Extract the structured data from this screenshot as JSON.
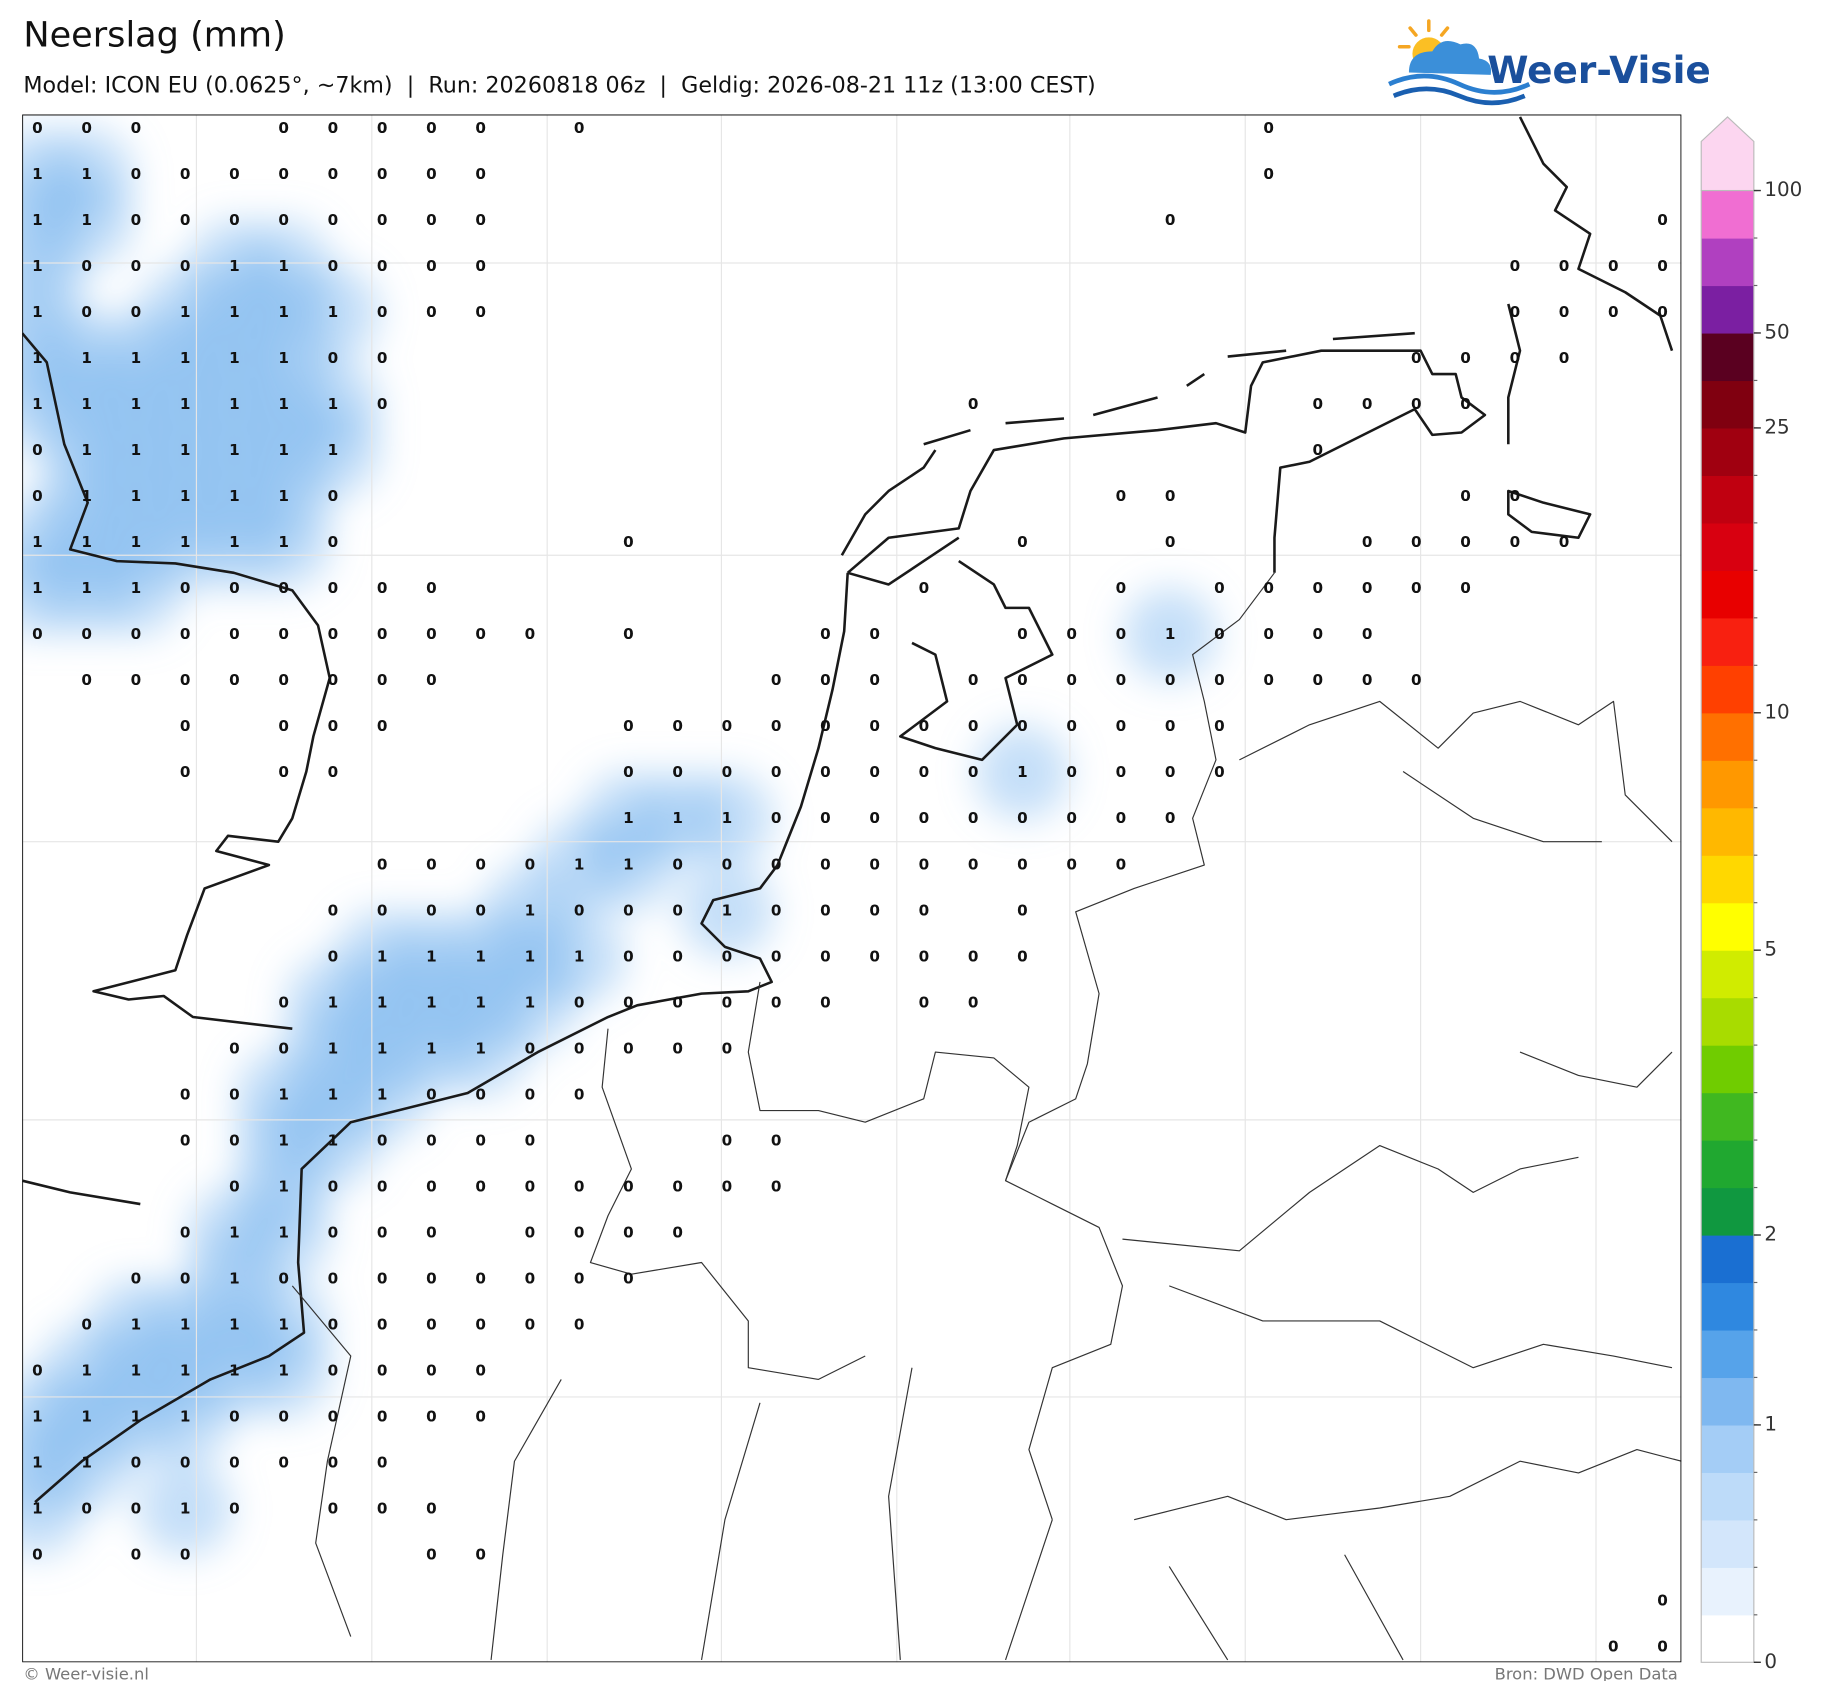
{
  "header": {
    "title": "Neerslag (mm)",
    "subtitle": "Model: ICON EU (0.0625°, ~7km)  |  Run: 20260818 06z  |  Geldig: 2026-08-21 11z (13:00 CEST)",
    "logo": "Weer-Visie"
  },
  "map": {
    "grid": [
      [
        0,
        0,
        0,
        null,
        null,
        0,
        0,
        0,
        0,
        0,
        null,
        0,
        null,
        null,
        null,
        null,
        null,
        null,
        null,
        null,
        null,
        null,
        null,
        null,
        null,
        0,
        null,
        null,
        null,
        null,
        null,
        null,
        null,
        null
      ],
      [
        1,
        1,
        0,
        0,
        0,
        0,
        0,
        0,
        0,
        0,
        null,
        null,
        null,
        null,
        null,
        null,
        null,
        null,
        null,
        null,
        null,
        null,
        null,
        null,
        null,
        0,
        null,
        null,
        null,
        null,
        null,
        null,
        null,
        null
      ],
      [
        1,
        1,
        0,
        0,
        0,
        0,
        0,
        0,
        0,
        0,
        null,
        null,
        null,
        null,
        null,
        null,
        null,
        null,
        null,
        null,
        null,
        null,
        null,
        0,
        null,
        null,
        null,
        null,
        null,
        null,
        null,
        null,
        null,
        0
      ],
      [
        1,
        0,
        0,
        0,
        1,
        1,
        0,
        0,
        0,
        0,
        null,
        null,
        null,
        null,
        null,
        null,
        null,
        null,
        null,
        null,
        null,
        null,
        null,
        null,
        null,
        null,
        null,
        null,
        null,
        null,
        0,
        0,
        0,
        0
      ],
      [
        1,
        0,
        0,
        1,
        1,
        1,
        1,
        0,
        0,
        0,
        null,
        null,
        null,
        null,
        null,
        null,
        null,
        null,
        null,
        null,
        null,
        null,
        null,
        null,
        null,
        null,
        null,
        null,
        null,
        null,
        0,
        0,
        0,
        0
      ],
      [
        1,
        1,
        1,
        1,
        1,
        1,
        0,
        0,
        null,
        null,
        null,
        null,
        null,
        null,
        null,
        null,
        null,
        null,
        null,
        null,
        null,
        null,
        null,
        null,
        null,
        null,
        null,
        null,
        0,
        0,
        0,
        0,
        null,
        null
      ],
      [
        1,
        1,
        1,
        1,
        1,
        1,
        1,
        0,
        null,
        null,
        null,
        null,
        null,
        null,
        null,
        null,
        null,
        null,
        null,
        0,
        null,
        null,
        null,
        null,
        null,
        null,
        0,
        0,
        0,
        0,
        null,
        null,
        null,
        null
      ],
      [
        0,
        1,
        1,
        1,
        1,
        1,
        1,
        null,
        null,
        null,
        null,
        null,
        null,
        null,
        null,
        null,
        null,
        null,
        null,
        null,
        null,
        null,
        null,
        null,
        null,
        null,
        0,
        null,
        null,
        null,
        null,
        null,
        null,
        null
      ],
      [
        0,
        1,
        1,
        1,
        1,
        1,
        0,
        null,
        null,
        null,
        null,
        null,
        null,
        null,
        null,
        null,
        null,
        null,
        null,
        null,
        null,
        null,
        0,
        0,
        null,
        null,
        null,
        null,
        null,
        0,
        0,
        null,
        null,
        null
      ],
      [
        1,
        1,
        1,
        1,
        1,
        1,
        0,
        null,
        null,
        null,
        null,
        null,
        0,
        null,
        null,
        null,
        null,
        null,
        null,
        null,
        0,
        null,
        null,
        0,
        null,
        null,
        null,
        0,
        0,
        0,
        0,
        0,
        null,
        null
      ],
      [
        1,
        1,
        1,
        0,
        0,
        0,
        0,
        0,
        0,
        null,
        null,
        null,
        null,
        null,
        null,
        null,
        null,
        null,
        0,
        null,
        null,
        null,
        0,
        null,
        0,
        0,
        0,
        0,
        0,
        0,
        null,
        null,
        null,
        null
      ],
      [
        0,
        0,
        0,
        0,
        0,
        0,
        0,
        0,
        0,
        0,
        0,
        null,
        0,
        null,
        null,
        null,
        0,
        0,
        null,
        null,
        0,
        0,
        0,
        1,
        0,
        0,
        0,
        0,
        null,
        null,
        null,
        null,
        null,
        null
      ],
      [
        null,
        0,
        0,
        0,
        0,
        0,
        0,
        0,
        0,
        null,
        null,
        null,
        null,
        null,
        null,
        0,
        0,
        0,
        null,
        0,
        0,
        0,
        0,
        0,
        0,
        0,
        0,
        0,
        0,
        null,
        null,
        null,
        null,
        null
      ],
      [
        null,
        null,
        null,
        0,
        null,
        0,
        0,
        0,
        null,
        null,
        null,
        null,
        0,
        0,
        0,
        0,
        0,
        0,
        0,
        0,
        0,
        0,
        0,
        0,
        0,
        null,
        null,
        null,
        null,
        null,
        null,
        null,
        null,
        null
      ],
      [
        null,
        null,
        null,
        0,
        null,
        0,
        0,
        null,
        null,
        null,
        null,
        null,
        0,
        0,
        0,
        0,
        0,
        0,
        0,
        0,
        1,
        0,
        0,
        0,
        0,
        null,
        null,
        null,
        null,
        null,
        null,
        null,
        null,
        null
      ],
      [
        null,
        null,
        null,
        null,
        null,
        null,
        null,
        null,
        null,
        null,
        null,
        null,
        1,
        1,
        1,
        0,
        0,
        0,
        0,
        0,
        0,
        0,
        0,
        0,
        null,
        null,
        null,
        null,
        null,
        null,
        null,
        null,
        null,
        null
      ],
      [
        null,
        null,
        null,
        null,
        null,
        null,
        null,
        0,
        0,
        0,
        0,
        1,
        1,
        0,
        0,
        0,
        0,
        0,
        0,
        0,
        0,
        0,
        0,
        null,
        null,
        null,
        null,
        null,
        null,
        null,
        null,
        null,
        null,
        null
      ],
      [
        null,
        null,
        null,
        null,
        null,
        null,
        0,
        0,
        0,
        0,
        1,
        0,
        0,
        0,
        1,
        0,
        0,
        0,
        0,
        null,
        0,
        null,
        null,
        null,
        null,
        null,
        null,
        null,
        null,
        null,
        null,
        null,
        null,
        null
      ],
      [
        null,
        null,
        null,
        null,
        null,
        null,
        0,
        1,
        1,
        1,
        1,
        1,
        0,
        0,
        0,
        0,
        0,
        0,
        0,
        0,
        0,
        null,
        null,
        null,
        null,
        null,
        null,
        null,
        null,
        null,
        null,
        null,
        null,
        null
      ],
      [
        null,
        null,
        null,
        null,
        null,
        0,
        1,
        1,
        1,
        1,
        1,
        0,
        0,
        0,
        0,
        0,
        0,
        null,
        0,
        0,
        null,
        null,
        null,
        null,
        null,
        null,
        null,
        null,
        null,
        null,
        null,
        null,
        null,
        null
      ],
      [
        null,
        null,
        null,
        null,
        0,
        0,
        1,
        1,
        1,
        1,
        0,
        0,
        0,
        0,
        0,
        null,
        null,
        null,
        null,
        null,
        null,
        null,
        null,
        null,
        null,
        null,
        null,
        null,
        null,
        null,
        null,
        null,
        null,
        null
      ],
      [
        null,
        null,
        null,
        0,
        0,
        1,
        1,
        1,
        0,
        0,
        0,
        0,
        null,
        null,
        null,
        null,
        null,
        null,
        null,
        null,
        null,
        null,
        null,
        null,
        null,
        null,
        null,
        null,
        null,
        null,
        null,
        null,
        null,
        null
      ],
      [
        null,
        null,
        null,
        0,
        0,
        1,
        1,
        0,
        0,
        0,
        0,
        null,
        null,
        null,
        0,
        0,
        null,
        null,
        null,
        null,
        null,
        null,
        null,
        null,
        null,
        null,
        null,
        null,
        null,
        null,
        null,
        null,
        null,
        null
      ],
      [
        null,
        null,
        null,
        null,
        0,
        1,
        0,
        0,
        0,
        0,
        0,
        0,
        0,
        0,
        0,
        0,
        null,
        null,
        null,
        null,
        null,
        null,
        null,
        null,
        null,
        null,
        null,
        null,
        null,
        null,
        null,
        null,
        null,
        null
      ],
      [
        null,
        null,
        null,
        0,
        1,
        1,
        0,
        0,
        0,
        null,
        0,
        0,
        0,
        0,
        null,
        null,
        null,
        null,
        null,
        null,
        null,
        null,
        null,
        null,
        null,
        null,
        null,
        null,
        null,
        null,
        null,
        null,
        null,
        null
      ],
      [
        null,
        null,
        0,
        0,
        1,
        0,
        0,
        0,
        0,
        0,
        0,
        0,
        0,
        null,
        null,
        null,
        null,
        null,
        null,
        null,
        null,
        null,
        null,
        null,
        null,
        null,
        null,
        null,
        null,
        null,
        null,
        null,
        null,
        null
      ],
      [
        null,
        0,
        1,
        1,
        1,
        1,
        0,
        0,
        0,
        0,
        0,
        0,
        null,
        null,
        null,
        null,
        null,
        null,
        null,
        null,
        null,
        null,
        null,
        null,
        null,
        null,
        null,
        null,
        null,
        null,
        null,
        null,
        null,
        null
      ],
      [
        0,
        1,
        1,
        1,
        1,
        1,
        0,
        0,
        0,
        0,
        null,
        null,
        null,
        null,
        null,
        null,
        null,
        null,
        null,
        null,
        null,
        null,
        null,
        null,
        null,
        null,
        null,
        null,
        null,
        null,
        null,
        null,
        null,
        null
      ],
      [
        1,
        1,
        1,
        1,
        0,
        0,
        0,
        0,
        0,
        0,
        null,
        null,
        null,
        null,
        null,
        null,
        null,
        null,
        null,
        null,
        null,
        null,
        null,
        null,
        null,
        null,
        null,
        null,
        null,
        null,
        null,
        null,
        null,
        null
      ],
      [
        1,
        1,
        0,
        0,
        0,
        0,
        0,
        0,
        null,
        null,
        null,
        null,
        null,
        null,
        null,
        null,
        null,
        null,
        null,
        null,
        null,
        null,
        null,
        null,
        null,
        null,
        null,
        null,
        null,
        null,
        null,
        null,
        null,
        null
      ],
      [
        1,
        0,
        0,
        1,
        0,
        null,
        0,
        0,
        0,
        null,
        null,
        null,
        null,
        null,
        null,
        null,
        null,
        null,
        null,
        null,
        null,
        null,
        null,
        null,
        null,
        null,
        null,
        null,
        null,
        null,
        null,
        null,
        null,
        null
      ],
      [
        0,
        null,
        0,
        0,
        null,
        null,
        null,
        null,
        0,
        0,
        null,
        null,
        null,
        null,
        null,
        null,
        null,
        null,
        null,
        null,
        null,
        null,
        null,
        null,
        null,
        null,
        null,
        null,
        null,
        null,
        null,
        null,
        null,
        null
      ],
      [
        null,
        null,
        null,
        null,
        null,
        null,
        null,
        null,
        null,
        null,
        null,
        null,
        null,
        null,
        null,
        null,
        null,
        null,
        null,
        null,
        null,
        null,
        null,
        null,
        null,
        null,
        null,
        null,
        null,
        null,
        null,
        null,
        null,
        0
      ],
      [
        null,
        null,
        null,
        null,
        null,
        null,
        null,
        null,
        null,
        null,
        null,
        null,
        null,
        null,
        null,
        null,
        null,
        null,
        null,
        null,
        null,
        null,
        null,
        null,
        null,
        null,
        null,
        null,
        null,
        null,
        null,
        null,
        0,
        0
      ]
    ]
  },
  "colorbar": {
    "levels": [
      0,
      0.1,
      0.2,
      0.4,
      0.6,
      1,
      1.25,
      1.5,
      1.75,
      2,
      2.5,
      3,
      3.5,
      4,
      4.5,
      5,
      6,
      7,
      8,
      9,
      10,
      12,
      14,
      16,
      18,
      20,
      25,
      35,
      50,
      65,
      80,
      100
    ],
    "colors": [
      "#ffffff",
      "#e8f2fd",
      "#d3e6fb",
      "#bddbf9",
      "#a4cdf6",
      "#7fb8f0",
      "#56a3ea",
      "#2f88e0",
      "#1a6fd2",
      "#109840",
      "#20a830",
      "#40b820",
      "#70cc00",
      "#a8dc00",
      "#d0ec00",
      "#ffff00",
      "#ffd800",
      "#ffb800",
      "#ff9800",
      "#ff7000",
      "#ff4000",
      "#f82010",
      "#e80000",
      "#d80010",
      "#c00010",
      "#a00010",
      "#800010",
      "#5a0020",
      "#7b1fa2",
      "#b040c0",
      "#f06ed2"
    ],
    "extend_color": "#fcd6f0",
    "ticks": [
      0,
      1,
      2,
      5,
      10,
      25,
      50,
      100
    ]
  },
  "footer": {
    "credit": "© Weer-visie.nl",
    "source": "Bron: DWD Open Data"
  }
}
